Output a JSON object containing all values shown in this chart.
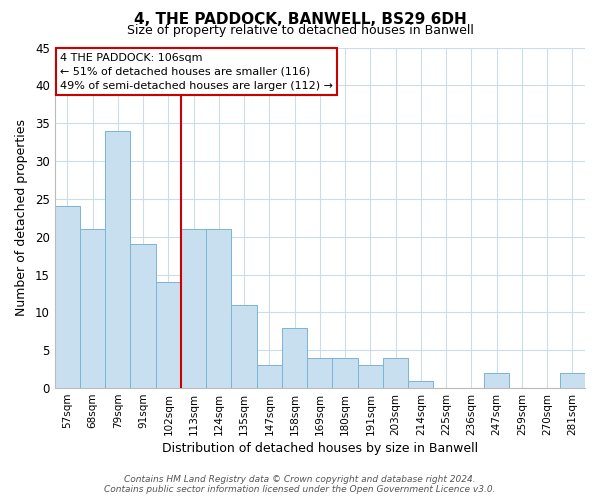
{
  "title": "4, THE PADDOCK, BANWELL, BS29 6DH",
  "subtitle": "Size of property relative to detached houses in Banwell",
  "xlabel": "Distribution of detached houses by size in Banwell",
  "ylabel": "Number of detached properties",
  "bin_labels": [
    "57sqm",
    "68sqm",
    "79sqm",
    "91sqm",
    "102sqm",
    "113sqm",
    "124sqm",
    "135sqm",
    "147sqm",
    "158sqm",
    "169sqm",
    "180sqm",
    "191sqm",
    "203sqm",
    "214sqm",
    "225sqm",
    "236sqm",
    "247sqm",
    "259sqm",
    "270sqm",
    "281sqm"
  ],
  "bar_heights": [
    24,
    21,
    34,
    19,
    14,
    21,
    21,
    11,
    3,
    8,
    4,
    4,
    3,
    4,
    1,
    0,
    0,
    2,
    0,
    0,
    2
  ],
  "bar_color": "#c8dff0",
  "bar_edge_color": "#7ab4d4",
  "highlight_line_color": "#cc0000",
  "ylim": [
    0,
    45
  ],
  "yticks": [
    0,
    5,
    10,
    15,
    20,
    25,
    30,
    35,
    40,
    45
  ],
  "annotation_title": "4 THE PADDOCK: 106sqm",
  "annotation_line1": "← 51% of detached houses are smaller (116)",
  "annotation_line2": "49% of semi-detached houses are larger (112) →",
  "annotation_box_color": "#ffffff",
  "annotation_box_edge": "#cc0000",
  "footer_line1": "Contains HM Land Registry data © Crown copyright and database right 2024.",
  "footer_line2": "Contains public sector information licensed under the Open Government Licence v3.0.",
  "background_color": "#ffffff",
  "grid_color": "#ccdde8"
}
